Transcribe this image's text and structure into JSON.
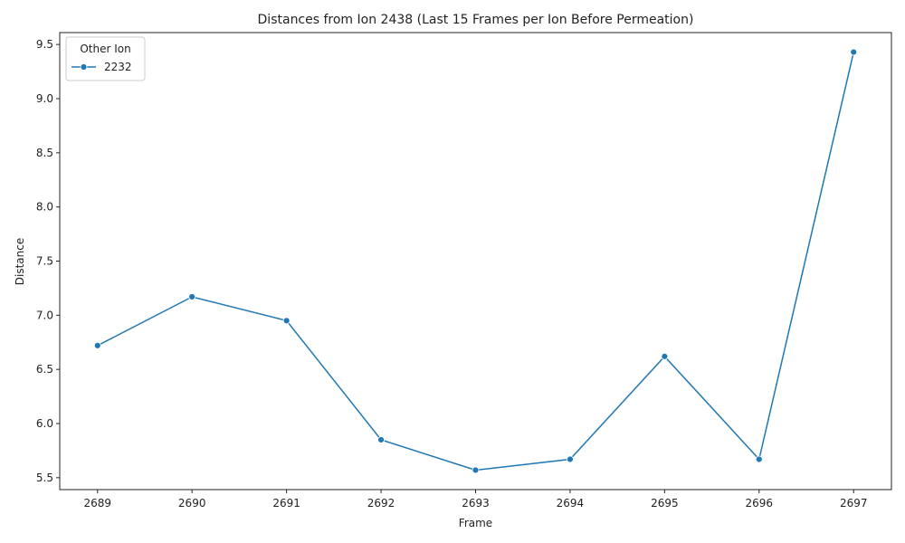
{
  "chart_data": {
    "type": "line",
    "title": "Distances from Ion 2438 (Last 15 Frames per Ion Before Permeation)",
    "xlabel": "Frame",
    "ylabel": "Distance",
    "x": [
      2689,
      2690,
      2691,
      2692,
      2693,
      2694,
      2695,
      2696,
      2697
    ],
    "series": [
      {
        "name": "2232",
        "color": "#1f77b4",
        "values": [
          6.72,
          7.17,
          6.95,
          5.85,
          5.57,
          5.67,
          6.62,
          5.67,
          9.43
        ]
      }
    ],
    "xlim": [
      2688.6,
      2697.4
    ],
    "ylim": [
      5.39,
      9.61
    ],
    "xticks": [
      "2689",
      "2690",
      "2691",
      "2692",
      "2693",
      "2694",
      "2695",
      "2696",
      "2697"
    ],
    "yticks": [
      "5.5",
      "6.0",
      "6.5",
      "7.0",
      "7.5",
      "8.0",
      "8.5",
      "9.0",
      "9.5"
    ],
    "ytick_values": [
      5.5,
      6.0,
      6.5,
      7.0,
      7.5,
      8.0,
      8.5,
      9.0,
      9.5
    ],
    "grid": false,
    "legend": {
      "title": "Other Ion",
      "placement": "top-left"
    }
  }
}
